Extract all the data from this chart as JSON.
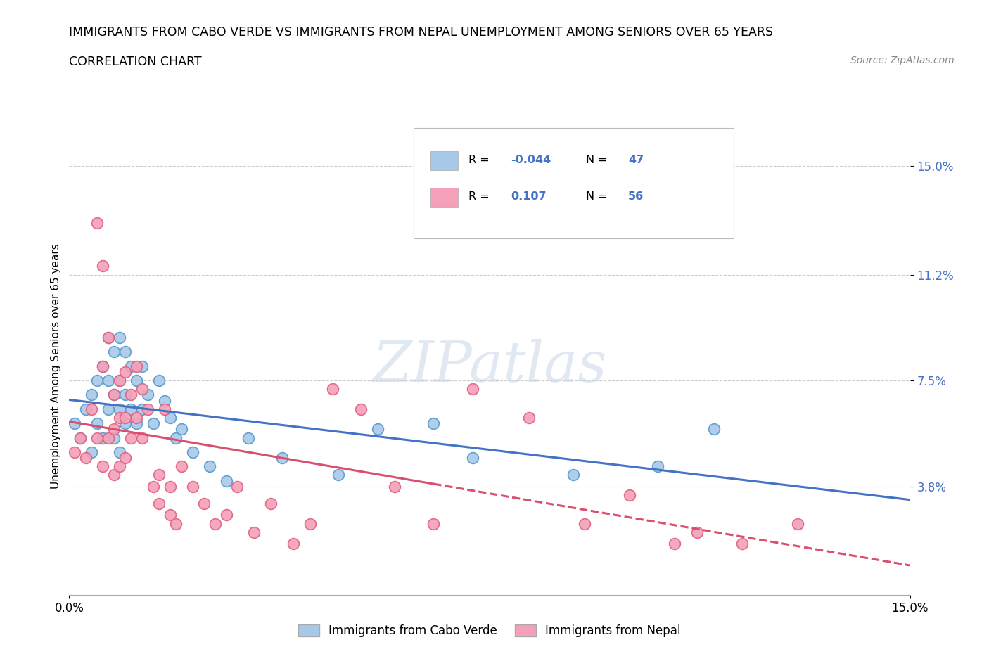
{
  "title_line1": "IMMIGRANTS FROM CABO VERDE VS IMMIGRANTS FROM NEPAL UNEMPLOYMENT AMONG SENIORS OVER 65 YEARS",
  "title_line2": "CORRELATION CHART",
  "source": "Source: ZipAtlas.com",
  "ylabel": "Unemployment Among Seniors over 65 years",
  "xlim": [
    0.0,
    0.15
  ],
  "ylim": [
    0.0,
    0.16
  ],
  "ytick_values": [
    0.038,
    0.075,
    0.112,
    0.15
  ],
  "ytick_labels": [
    "3.8%",
    "7.5%",
    "11.2%",
    "15.0%"
  ],
  "cabo_verde_color": "#a8c8e8",
  "nepal_color": "#f4a0b8",
  "cabo_verde_edge": "#5599cc",
  "nepal_edge": "#e06080",
  "cabo_verde_line_color": "#4472c4",
  "nepal_line_color": "#d94f6e",
  "cabo_verde_x": [
    0.001,
    0.002,
    0.003,
    0.004,
    0.004,
    0.005,
    0.005,
    0.006,
    0.006,
    0.007,
    0.007,
    0.007,
    0.008,
    0.008,
    0.008,
    0.009,
    0.009,
    0.009,
    0.009,
    0.01,
    0.01,
    0.01,
    0.011,
    0.011,
    0.012,
    0.012,
    0.013,
    0.013,
    0.014,
    0.015,
    0.016,
    0.017,
    0.018,
    0.019,
    0.02,
    0.022,
    0.025,
    0.028,
    0.032,
    0.038,
    0.048,
    0.055,
    0.065,
    0.072,
    0.09,
    0.105,
    0.115
  ],
  "cabo_verde_y": [
    0.06,
    0.055,
    0.065,
    0.05,
    0.07,
    0.06,
    0.075,
    0.08,
    0.055,
    0.09,
    0.075,
    0.065,
    0.085,
    0.07,
    0.055,
    0.09,
    0.075,
    0.065,
    0.05,
    0.085,
    0.07,
    0.06,
    0.08,
    0.065,
    0.075,
    0.06,
    0.08,
    0.065,
    0.07,
    0.06,
    0.075,
    0.068,
    0.062,
    0.055,
    0.058,
    0.05,
    0.045,
    0.04,
    0.055,
    0.048,
    0.042,
    0.058,
    0.06,
    0.048,
    0.042,
    0.045,
    0.058
  ],
  "nepal_x": [
    0.001,
    0.002,
    0.003,
    0.004,
    0.005,
    0.005,
    0.006,
    0.006,
    0.006,
    0.007,
    0.007,
    0.008,
    0.008,
    0.008,
    0.009,
    0.009,
    0.009,
    0.01,
    0.01,
    0.01,
    0.011,
    0.011,
    0.012,
    0.012,
    0.013,
    0.013,
    0.014,
    0.015,
    0.016,
    0.016,
    0.017,
    0.018,
    0.018,
    0.019,
    0.02,
    0.022,
    0.024,
    0.026,
    0.028,
    0.03,
    0.033,
    0.036,
    0.04,
    0.043,
    0.047,
    0.052,
    0.058,
    0.065,
    0.072,
    0.082,
    0.092,
    0.1,
    0.108,
    0.112,
    0.12,
    0.13
  ],
  "nepal_y": [
    0.05,
    0.055,
    0.048,
    0.065,
    0.13,
    0.055,
    0.115,
    0.08,
    0.045,
    0.09,
    0.055,
    0.07,
    0.058,
    0.042,
    0.075,
    0.062,
    0.045,
    0.078,
    0.062,
    0.048,
    0.07,
    0.055,
    0.08,
    0.062,
    0.072,
    0.055,
    0.065,
    0.038,
    0.042,
    0.032,
    0.065,
    0.038,
    0.028,
    0.025,
    0.045,
    0.038,
    0.032,
    0.025,
    0.028,
    0.038,
    0.022,
    0.032,
    0.018,
    0.025,
    0.072,
    0.065,
    0.038,
    0.025,
    0.072,
    0.062,
    0.025,
    0.035,
    0.018,
    0.022,
    0.018,
    0.025
  ]
}
